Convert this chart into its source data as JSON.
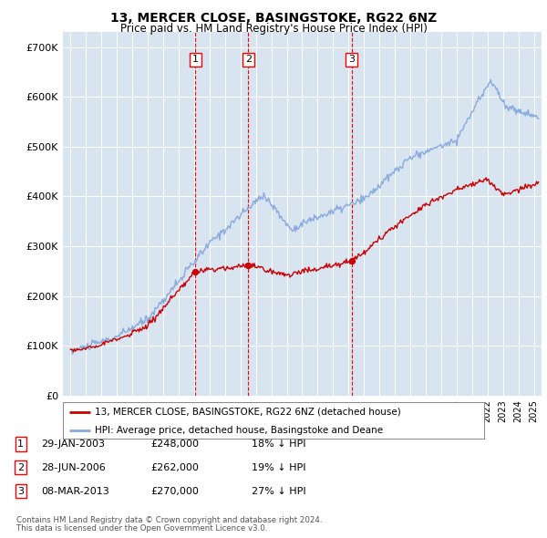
{
  "title": "13, MERCER CLOSE, BASINGSTOKE, RG22 6NZ",
  "subtitle": "Price paid vs. HM Land Registry's House Price Index (HPI)",
  "hpi_color": "#88aadd",
  "price_color": "#cc0000",
  "plot_bg_color": "#d8e4f0",
  "ylabel_ticks": [
    "£0",
    "£100K",
    "£200K",
    "£300K",
    "£400K",
    "£500K",
    "£600K",
    "£700K"
  ],
  "ytick_values": [
    0,
    100000,
    200000,
    300000,
    400000,
    500000,
    600000,
    700000
  ],
  "ylim": [
    0,
    730000
  ],
  "transactions": [
    {
      "num": 1,
      "date": "29-JAN-2003",
      "price": 248000,
      "hpi_pct": "18%",
      "x_year": 2003.08
    },
    {
      "num": 2,
      "date": "28-JUN-2006",
      "price": 262000,
      "hpi_pct": "19%",
      "x_year": 2006.5
    },
    {
      "num": 3,
      "date": "08-MAR-2013",
      "price": 270000,
      "hpi_pct": "27%",
      "x_year": 2013.19
    }
  ],
  "legend_label_price": "13, MERCER CLOSE, BASINGSTOKE, RG22 6NZ (detached house)",
  "legend_label_hpi": "HPI: Average price, detached house, Basingstoke and Deane",
  "footer1": "Contains HM Land Registry data © Crown copyright and database right 2024.",
  "footer2": "This data is licensed under the Open Government Licence v3.0.",
  "xlim_start": 1994.5,
  "xlim_end": 2025.5
}
